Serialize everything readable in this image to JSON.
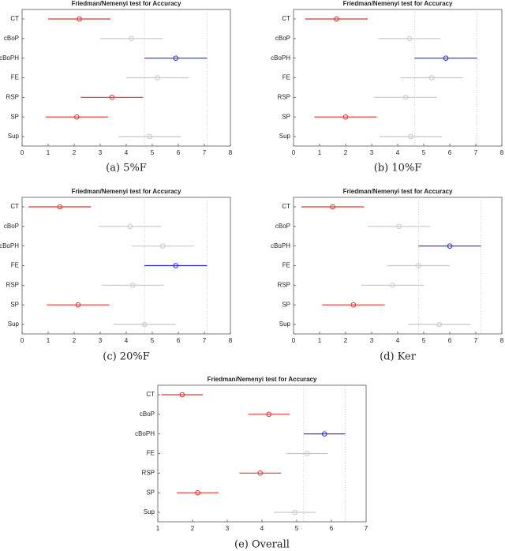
{
  "chart_data": [
    {
      "type": "interval",
      "title": "Friedman/Nemenyi test for Accuracy",
      "caption": "(a)  5%F",
      "categories": [
        "CT",
        "cBoP",
        "cBoPH",
        "FE",
        "RSP",
        "SP",
        "Sup"
      ],
      "values": [
        2.2,
        4.2,
        5.9,
        5.2,
        3.45,
        2.1,
        4.9
      ],
      "errors": [
        1.2,
        1.2,
        1.2,
        1.2,
        1.2,
        1.2,
        1.2
      ],
      "colors": [
        "#e83030",
        "#c8c8c8",
        "#2a2ae0",
        "#c8c8c8",
        "#e83030",
        "#e83030",
        "#c8c8c8"
      ],
      "xlim": [
        0,
        8
      ],
      "xticks": [
        0,
        1,
        2,
        3,
        4,
        5,
        6,
        7,
        8
      ]
    },
    {
      "type": "interval",
      "title": "Friedman/Nemenyi test for Accuracy",
      "caption": "(b)  10%F",
      "categories": [
        "CT",
        "cBoP",
        "cBoPH",
        "FE",
        "RSP",
        "SP",
        "Sup"
      ],
      "values": [
        1.65,
        4.45,
        5.85,
        5.3,
        4.3,
        2.0,
        4.5
      ],
      "errors": [
        1.2,
        1.2,
        1.2,
        1.2,
        1.2,
        1.2,
        1.2
      ],
      "colors": [
        "#e83030",
        "#c8c8c8",
        "#2a2ae0",
        "#c8c8c8",
        "#c8c8c8",
        "#e83030",
        "#c8c8c8"
      ],
      "xlim": [
        0,
        8
      ],
      "xticks": [
        0,
        1,
        2,
        3,
        4,
        5,
        6,
        7,
        8
      ]
    },
    {
      "type": "interval",
      "title": "Friedman/Nemenyi test for Accuracy",
      "caption": "(c)  20%F",
      "categories": [
        "CT",
        "cBoP",
        "cBoPH",
        "FE",
        "RSP",
        "SP",
        "Sup"
      ],
      "values": [
        1.45,
        4.15,
        5.4,
        5.9,
        4.25,
        2.15,
        4.7
      ],
      "errors": [
        1.2,
        1.2,
        1.2,
        1.2,
        1.2,
        1.2,
        1.2
      ],
      "colors": [
        "#e83030",
        "#c8c8c8",
        "#c8c8c8",
        "#2a2ae0",
        "#c8c8c8",
        "#e83030",
        "#c8c8c8"
      ],
      "xlim": [
        0,
        8
      ],
      "xticks": [
        0,
        1,
        2,
        3,
        4,
        5,
        6,
        7,
        8
      ]
    },
    {
      "type": "interval",
      "title": "Friedman/Nemenyi test for Accuracy",
      "caption": "(d)  Ker",
      "categories": [
        "CT",
        "cBoP",
        "cBoPH",
        "FE",
        "RSP",
        "SP",
        "Sup"
      ],
      "values": [
        1.5,
        4.05,
        6.0,
        4.8,
        3.8,
        2.3,
        5.6
      ],
      "errors": [
        1.2,
        1.2,
        1.2,
        1.2,
        1.2,
        1.2,
        1.2
      ],
      "colors": [
        "#e83030",
        "#c8c8c8",
        "#2a2ae0",
        "#c8c8c8",
        "#c8c8c8",
        "#e83030",
        "#c8c8c8"
      ],
      "xlim": [
        0,
        8
      ],
      "xticks": [
        0,
        1,
        2,
        3,
        4,
        5,
        6,
        7,
        8
      ]
    },
    {
      "type": "interval",
      "title": "Friedman/Nemenyi test for Accuracy",
      "caption": "(e)  Overall",
      "categories": [
        "CT",
        "cBoP",
        "cBoPH",
        "FE",
        "RSP",
        "SP",
        "Sup"
      ],
      "values": [
        1.7,
        4.2,
        5.8,
        5.3,
        3.95,
        2.15,
        4.95
      ],
      "errors": [
        0.6,
        0.6,
        0.6,
        0.6,
        0.6,
        0.6,
        0.6
      ],
      "colors": [
        "#e83030",
        "#e83030",
        "#2a2ae0",
        "#c8c8c8",
        "#e83030",
        "#e83030",
        "#c8c8c8"
      ],
      "xlim": [
        1,
        7
      ],
      "xticks": [
        1,
        2,
        3,
        4,
        5,
        6,
        7
      ]
    }
  ]
}
